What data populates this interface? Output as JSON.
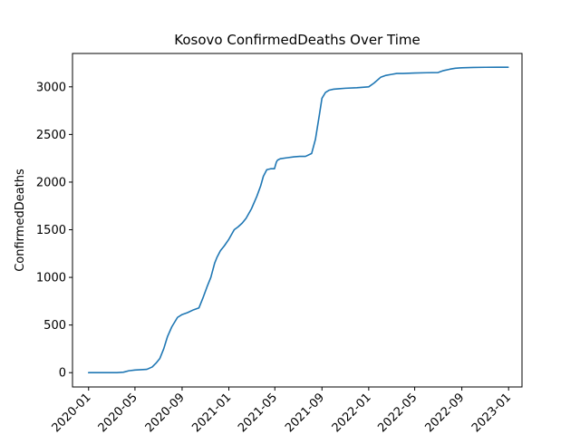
{
  "chart_data": {
    "type": "line",
    "title": "Kosovo  ConfirmedDeaths Over Time",
    "xlabel": "",
    "ylabel": "ConfirmedDeaths",
    "x_ticks": [
      "2020-01",
      "2020-05",
      "2020-09",
      "2021-01",
      "2021-05",
      "2021-09",
      "2022-01",
      "2022-05",
      "2022-09",
      "2023-01"
    ],
    "y_ticks": [
      0,
      500,
      1000,
      1500,
      2000,
      2500,
      3000
    ],
    "xlim": [
      "2019-11-20",
      "2023-02-05"
    ],
    "ylim": [
      -150,
      3350
    ],
    "grid": false,
    "line_color": "#1f77b4",
    "series": [
      {
        "x": [
          "2020-01-01",
          "2020-03-15",
          "2020-04-01",
          "2020-04-15",
          "2020-05-01",
          "2020-06-01",
          "2020-06-15",
          "2020-06-25",
          "2020-07-05",
          "2020-07-15",
          "2020-07-25",
          "2020-08-05",
          "2020-08-20",
          "2020-09-01",
          "2020-09-15",
          "2020-10-01",
          "2020-10-15",
          "2020-10-25",
          "2020-11-05",
          "2020-11-15",
          "2020-11-25",
          "2020-12-01",
          "2020-12-10",
          "2020-12-20",
          "2021-01-01",
          "2021-01-15",
          "2021-01-25",
          "2021-02-05",
          "2021-02-15",
          "2021-03-01",
          "2021-03-15",
          "2021-03-25",
          "2021-04-01",
          "2021-04-10",
          "2021-04-20",
          "2021-04-30",
          "2021-05-05",
          "2021-05-08",
          "2021-05-15",
          "2021-06-01",
          "2021-06-20",
          "2021-07-05",
          "2021-07-20",
          "2021-08-05",
          "2021-08-15",
          "2021-08-25",
          "2021-09-01",
          "2021-09-10",
          "2021-09-20",
          "2021-10-01",
          "2021-10-15",
          "2021-11-01",
          "2021-12-01",
          "2022-01-01",
          "2022-01-15",
          "2022-02-01",
          "2022-02-15",
          "2022-03-01",
          "2022-03-15",
          "2022-04-01",
          "2022-05-01",
          "2022-06-01",
          "2022-07-01",
          "2022-07-15",
          "2022-08-01",
          "2022-08-15",
          "2022-09-01",
          "2022-10-01",
          "2022-11-01",
          "2022-12-01",
          "2022-12-31"
        ],
        "y": [
          0,
          0,
          5,
          20,
          28,
          35,
          60,
          100,
          150,
          250,
          380,
          480,
          580,
          610,
          630,
          660,
          680,
          780,
          900,
          1000,
          1150,
          1210,
          1280,
          1330,
          1400,
          1500,
          1530,
          1570,
          1620,
          1720,
          1850,
          1960,
          2060,
          2130,
          2140,
          2140,
          2210,
          2230,
          2245,
          2255,
          2265,
          2270,
          2270,
          2300,
          2450,
          2700,
          2880,
          2940,
          2965,
          2975,
          2980,
          2985,
          2990,
          3000,
          3040,
          3100,
          3120,
          3130,
          3140,
          3140,
          3145,
          3148,
          3150,
          3170,
          3185,
          3195,
          3200,
          3203,
          3205,
          3206,
          3206
        ]
      }
    ]
  }
}
